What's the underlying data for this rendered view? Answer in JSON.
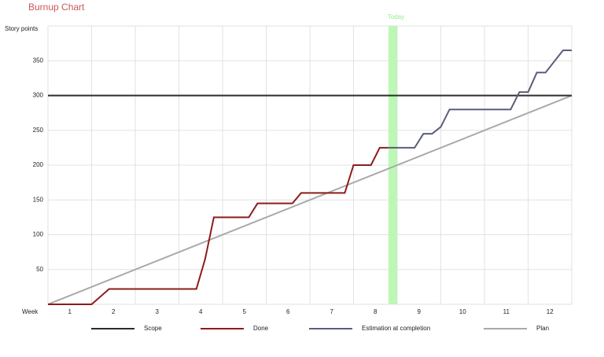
{
  "chart_data": {
    "type": "line",
    "title": "Burnup Chart",
    "y_label": "Story points",
    "x_label": "Week",
    "xlim": [
      0,
      12
    ],
    "ylim": [
      0,
      400
    ],
    "xticks": [
      {
        "value": 0.5,
        "label": "1"
      },
      {
        "value": 1.5,
        "label": "2"
      },
      {
        "value": 2.5,
        "label": "3"
      },
      {
        "value": 3.5,
        "label": "4"
      },
      {
        "value": 4.5,
        "label": "5"
      },
      {
        "value": 5.5,
        "label": "6"
      },
      {
        "value": 6.5,
        "label": "7"
      },
      {
        "value": 7.5,
        "label": "8"
      },
      {
        "value": 8.5,
        "label": "9"
      },
      {
        "value": 9.5,
        "label": "10"
      },
      {
        "value": 10.5,
        "label": "11"
      },
      {
        "value": 11.5,
        "label": "12"
      }
    ],
    "yticks": [
      50,
      100,
      150,
      200,
      250,
      300,
      350
    ],
    "grid": true,
    "today": {
      "label": "Today",
      "x_start": 7.8,
      "x_end": 8.0,
      "color": "#bdf7b5"
    },
    "series": [
      {
        "name": "Scope",
        "color": "#2b2b2b",
        "x": [
          0,
          12
        ],
        "values": [
          300,
          300
        ]
      },
      {
        "name": "Done",
        "color": "#8e1c1c",
        "x": [
          0,
          1,
          1.4,
          3.4,
          3.6,
          3.8,
          4.6,
          4.8,
          5.6,
          5.8,
          6.8,
          7.0,
          7.4,
          7.6,
          7.8
        ],
        "values": [
          0,
          0,
          22,
          22,
          65,
          125,
          125,
          145,
          145,
          160,
          160,
          200,
          200,
          225,
          225
        ]
      },
      {
        "name": "Estimation at completion",
        "color": "#5a5e7c",
        "x": [
          7.8,
          8.4,
          8.6,
          8.8,
          9.0,
          9.2,
          10.6,
          10.8,
          11.0,
          11.2,
          11.4,
          11.8,
          12
        ],
        "values": [
          225,
          225,
          245,
          245,
          255,
          280,
          280,
          305,
          305,
          333,
          333,
          365,
          365
        ]
      },
      {
        "name": "Plan",
        "color": "#a9a9a9",
        "x": [
          0,
          12
        ],
        "values": [
          0,
          300
        ]
      }
    ]
  }
}
